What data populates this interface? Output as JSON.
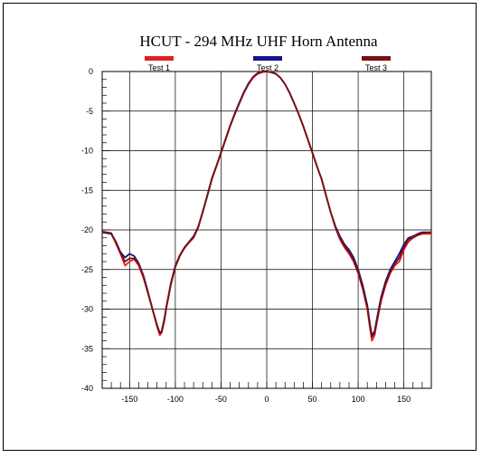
{
  "chart_data": {
    "type": "line",
    "title": "HCUT - 294 MHz UHF Horn Antenna",
    "xlabel": "",
    "ylabel": "",
    "xlim": [
      -180,
      180
    ],
    "ylim": [
      -40,
      0
    ],
    "xticks": [
      -150,
      -100,
      -50,
      0,
      50,
      100,
      150
    ],
    "yticks": [
      0,
      -5,
      -10,
      -15,
      -20,
      -25,
      -30,
      -35,
      -40
    ],
    "grid": true,
    "legend": "top",
    "series": [
      {
        "name": "Test 1",
        "color": "#e31e1e",
        "x": [
          -180,
          -170,
          -165,
          -160,
          -155,
          -150,
          -145,
          -140,
          -135,
          -130,
          -125,
          -120,
          -117,
          -115,
          -112,
          -110,
          -105,
          -100,
          -95,
          -90,
          -85,
          -80,
          -75,
          -70,
          -65,
          -60,
          -55,
          -50,
          -45,
          -40,
          -35,
          -30,
          -25,
          -20,
          -15,
          -10,
          -5,
          0,
          5,
          10,
          15,
          20,
          25,
          30,
          35,
          40,
          45,
          50,
          55,
          60,
          65,
          70,
          75,
          80,
          85,
          90,
          95,
          100,
          105,
          110,
          113,
          115,
          118,
          120,
          125,
          130,
          135,
          140,
          145,
          150,
          155,
          160,
          165,
          170,
          180
        ],
        "y": [
          -20.3,
          -20.5,
          -21.7,
          -23.0,
          -24.5,
          -24.0,
          -23.7,
          -24.5,
          -26.0,
          -28.0,
          -30.0,
          -32.2,
          -33.3,
          -33.0,
          -31.5,
          -30.0,
          -27.0,
          -24.7,
          -23.3,
          -22.3,
          -21.6,
          -21.0,
          -19.7,
          -17.8,
          -15.7,
          -13.6,
          -12.0,
          -10.3,
          -8.6,
          -6.9,
          -5.4,
          -4.0,
          -2.7,
          -1.6,
          -0.8,
          -0.3,
          -0.1,
          0.0,
          -0.1,
          -0.3,
          -0.8,
          -1.6,
          -2.7,
          -4.0,
          -5.4,
          -6.9,
          -8.6,
          -10.3,
          -12.0,
          -13.6,
          -15.7,
          -17.8,
          -19.7,
          -21.2,
          -22.2,
          -23.0,
          -24.0,
          -25.5,
          -27.5,
          -30.0,
          -32.5,
          -34.0,
          -33.3,
          -32.0,
          -29.0,
          -27.0,
          -25.5,
          -24.5,
          -24.0,
          -22.5,
          -21.5,
          -21.0,
          -20.7,
          -20.5,
          -20.5
        ]
      },
      {
        "name": "Test 2",
        "color": "#14148c",
        "x": [
          -180,
          -170,
          -165,
          -160,
          -155,
          -150,
          -145,
          -140,
          -135,
          -130,
          -125,
          -120,
          -117,
          -115,
          -112,
          -110,
          -105,
          -100,
          -95,
          -90,
          -85,
          -80,
          -75,
          -70,
          -65,
          -60,
          -55,
          -50,
          -45,
          -40,
          -35,
          -30,
          -25,
          -20,
          -15,
          -10,
          -5,
          0,
          5,
          10,
          15,
          20,
          25,
          30,
          35,
          40,
          45,
          50,
          55,
          60,
          65,
          70,
          75,
          80,
          85,
          90,
          95,
          100,
          105,
          110,
          113,
          115,
          118,
          120,
          125,
          130,
          135,
          140,
          145,
          150,
          155,
          160,
          165,
          170,
          180
        ],
        "y": [
          -20.3,
          -20.5,
          -21.5,
          -22.8,
          -23.5,
          -23.0,
          -23.3,
          -24.2,
          -25.7,
          -27.8,
          -30.0,
          -32.0,
          -33.0,
          -32.8,
          -31.2,
          -29.8,
          -26.8,
          -24.5,
          -23.2,
          -22.2,
          -21.5,
          -20.8,
          -19.6,
          -17.7,
          -15.6,
          -13.5,
          -11.9,
          -10.2,
          -8.5,
          -6.8,
          -5.3,
          -3.9,
          -2.6,
          -1.5,
          -0.7,
          -0.2,
          0.0,
          0.0,
          -0.1,
          -0.3,
          -0.8,
          -1.6,
          -2.7,
          -4.0,
          -5.4,
          -6.9,
          -8.6,
          -10.3,
          -12.0,
          -13.6,
          -15.7,
          -17.8,
          -19.5,
          -20.8,
          -21.8,
          -22.5,
          -23.5,
          -25.0,
          -27.0,
          -29.5,
          -32.0,
          -33.3,
          -32.8,
          -31.5,
          -28.5,
          -26.5,
          -25.0,
          -24.0,
          -23.0,
          -21.8,
          -21.0,
          -20.8,
          -20.5,
          -20.3,
          -20.3
        ]
      },
      {
        "name": "Test 3",
        "color": "#7a1010",
        "x": [
          -180,
          -170,
          -165,
          -160,
          -155,
          -150,
          -145,
          -140,
          -135,
          -130,
          -125,
          -120,
          -117,
          -115,
          -112,
          -110,
          -105,
          -100,
          -95,
          -90,
          -85,
          -80,
          -75,
          -70,
          -65,
          -60,
          -55,
          -50,
          -45,
          -40,
          -35,
          -30,
          -25,
          -20,
          -15,
          -10,
          -5,
          0,
          5,
          10,
          15,
          20,
          25,
          30,
          35,
          40,
          45,
          50,
          55,
          60,
          65,
          70,
          75,
          80,
          85,
          90,
          95,
          100,
          105,
          110,
          113,
          115,
          118,
          120,
          125,
          130,
          135,
          140,
          145,
          150,
          155,
          160,
          165,
          170,
          180
        ],
        "y": [
          -20.2,
          -20.4,
          -21.6,
          -22.9,
          -24.0,
          -23.6,
          -23.6,
          -24.3,
          -25.8,
          -27.9,
          -30.0,
          -32.1,
          -33.0,
          -32.9,
          -31.3,
          -29.9,
          -26.9,
          -24.6,
          -23.2,
          -22.3,
          -21.5,
          -20.9,
          -19.7,
          -17.7,
          -15.7,
          -13.6,
          -11.9,
          -10.3,
          -8.6,
          -6.8,
          -5.4,
          -4.0,
          -2.7,
          -1.6,
          -0.7,
          -0.2,
          0.0,
          0.0,
          -0.1,
          -0.3,
          -0.8,
          -1.6,
          -2.7,
          -4.0,
          -5.4,
          -6.9,
          -8.6,
          -10.3,
          -12.0,
          -13.6,
          -15.7,
          -17.8,
          -19.6,
          -21.0,
          -22.0,
          -22.8,
          -23.8,
          -25.3,
          -27.3,
          -29.8,
          -32.3,
          -33.5,
          -33.0,
          -31.8,
          -28.8,
          -26.8,
          -25.3,
          -24.3,
          -23.5,
          -22.2,
          -21.2,
          -20.9,
          -20.6,
          -20.4,
          -20.3
        ]
      }
    ]
  }
}
